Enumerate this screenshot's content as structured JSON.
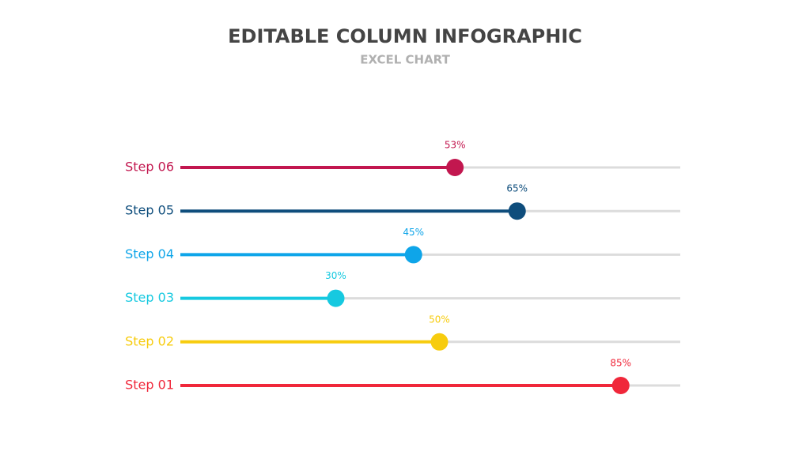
{
  "chart_data": {
    "type": "lollipop",
    "title": "EDITABLE COLUMN INFOGRAPHIC",
    "subtitle": "EXCEL CHART",
    "categories": [
      "Step 06",
      "Step 05",
      "Step 04",
      "Step 03",
      "Step 02",
      "Step 01"
    ],
    "values": [
      53,
      65,
      45,
      30,
      50,
      85
    ],
    "value_labels": [
      "53%",
      "65%",
      "45%",
      "30%",
      "50%",
      "85%"
    ],
    "colors": [
      "#c2174f",
      "#0e4d7c",
      "#0ea5e9",
      "#16c9e0",
      "#f7cc0e",
      "#f0273a"
    ]
  }
}
